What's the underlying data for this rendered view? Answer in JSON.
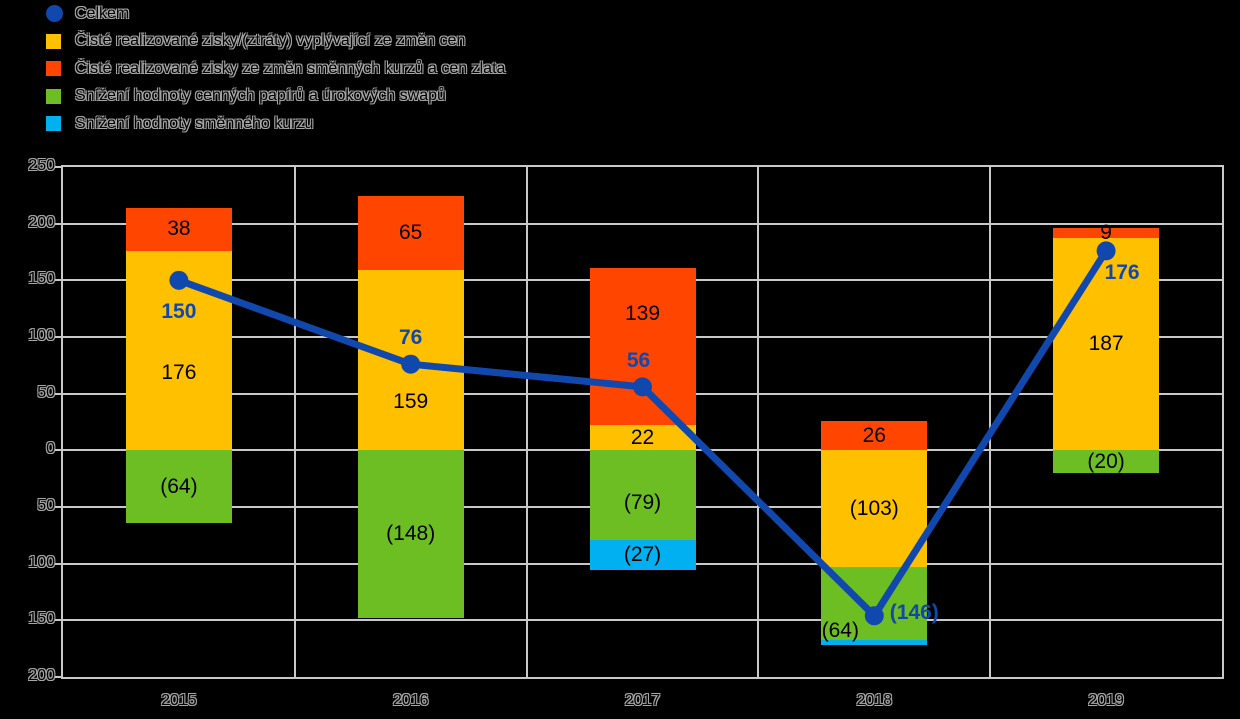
{
  "legend": {
    "items": [
      {
        "label": "Celkem",
        "marker": "circle",
        "color": "#1148AE"
      },
      {
        "label": "Čisté realizované zisky/(ztráty) vyplývající ze změn cen",
        "marker": "square",
        "color": "#FFC000"
      },
      {
        "label": "Čisté realizované zisky ze změn směnných kurzů a cen zlata",
        "marker": "square",
        "color": "#FF4500"
      },
      {
        "label": "Snížení hodnoty cenných papírů a úrokových swapů",
        "marker": "square",
        "color": "#6CBE23"
      },
      {
        "label": "Snížení hodnoty směnného kurzu",
        "marker": "square",
        "color": "#00B0F0"
      }
    ]
  },
  "chart_data": {
    "type": "bar",
    "subtype": "stacked-bars-with-total-line",
    "title": "",
    "xlabel": "",
    "ylabel": "",
    "categories": [
      "2015",
      "2016",
      "2017",
      "2018",
      "2019"
    ],
    "series": [
      {
        "name": "Čisté realizované zisky/(ztráty) vyplývající ze změn cen",
        "color": "#FFC000",
        "values": [
          176,
          159,
          22,
          -103,
          187
        ],
        "labels": [
          "176",
          "159",
          "22",
          "(103)",
          "187"
        ],
        "label_dx": [
          0,
          0,
          0,
          0,
          0
        ],
        "label_dy": [
          22,
          42,
          0,
          0,
          0
        ]
      },
      {
        "name": "Čisté realizované zisky ze změn směnných kurzů a cen zlata",
        "color": "#FF4500",
        "values": [
          38,
          65,
          139,
          26,
          9
        ],
        "labels": [
          "38",
          "65",
          "139",
          "26",
          "9"
        ],
        "label_dx": [
          0,
          0,
          0,
          0,
          0
        ],
        "label_dy": [
          0,
          0,
          -33,
          0,
          0
        ]
      },
      {
        "name": "Snížení hodnoty cenných papírů a úrokových swapů",
        "color": "#6CBE23",
        "values": [
          -64,
          -148,
          -79,
          -64,
          -20
        ],
        "labels": [
          "(64)",
          "(148)",
          "(79)",
          "(64)",
          "(20)"
        ],
        "label_dx": [
          0,
          0,
          0,
          -34,
          0
        ],
        "label_dy": [
          0,
          0,
          8,
          28,
          0
        ]
      },
      {
        "name": "Snížení hodnoty směnného kurzu",
        "color": "#00B0F0",
        "values": [
          0,
          0,
          -27,
          -5,
          0
        ],
        "labels": [
          "",
          "",
          "(27)",
          "",
          ""
        ],
        "label_dx": [
          0,
          0,
          0,
          0,
          0
        ],
        "label_dy": [
          0,
          0,
          0,
          0,
          0
        ]
      }
    ],
    "line": {
      "name": "Celkem",
      "color": "#1148AE",
      "values": [
        150,
        76,
        56,
        -146,
        176
      ],
      "labels": [
        "150",
        "76",
        "56",
        "(146)",
        "176"
      ],
      "label_dx": [
        0,
        0,
        -4,
        40,
        16
      ],
      "label_dy": [
        32,
        -26,
        -26,
        -3,
        22
      ]
    },
    "ylim": [
      -200,
      250
    ],
    "ytick_step": 50,
    "ytick_labels": [
      "250",
      "200",
      "150",
      "100",
      "50",
      "0",
      "50",
      "100",
      "150",
      "200"
    ],
    "grid": true,
    "legend_position": "top-left",
    "colors": {
      "background": "#000000",
      "gridline": "#C8C8C8",
      "bar_label_text": "#000000"
    }
  }
}
